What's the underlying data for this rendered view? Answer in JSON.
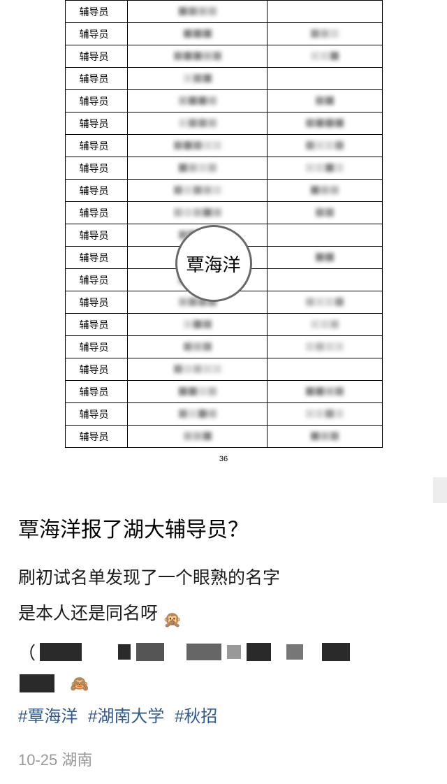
{
  "table": {
    "role_label": "辅导员",
    "page_number": "36",
    "highlighted_name": "覃海洋",
    "row_count": 20,
    "colors": {
      "border": "#000000",
      "background": "#ffffff",
      "mosaic_light": "#bbbbbb",
      "mosaic_mid": "#888888",
      "mosaic_dark": "#555555"
    }
  },
  "post": {
    "title": "覃海洋报了湖大辅导员？",
    "body_line1": "刷初试名单发现了一个眼熟的名字",
    "body_line2": "是本人还是同名呀",
    "emoji_scream": "🙊",
    "emoji_shy": "🙈",
    "hashtags": [
      "#覃海洋",
      "#湖南大学",
      "#秋招"
    ],
    "meta_date": "10-25",
    "meta_location": "湖南"
  },
  "style": {
    "title_fontsize": 30,
    "body_fontsize": 25,
    "hashtag_color": "#305a8f",
    "meta_color": "#999999",
    "text_color": "#1a1a1a"
  }
}
